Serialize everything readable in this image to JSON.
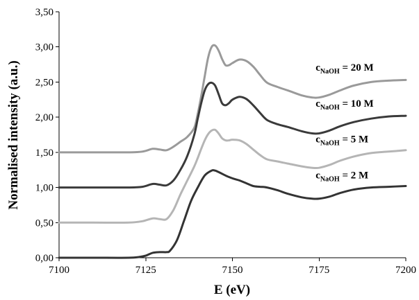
{
  "chart_data": {
    "type": "line",
    "title": "",
    "xlabel": "E (eV)",
    "ylabel": "Normalised intensity (a.u.)",
    "xlim": [
      7100,
      7200
    ],
    "ylim": [
      0,
      3.5
    ],
    "grid": false,
    "x_ticks": [
      "7100",
      "7125",
      "7150",
      "7175",
      "7200"
    ],
    "y_ticks": [
      "0,00",
      "0,50",
      "1,00",
      "1,50",
      "2,00",
      "2,50",
      "3,00",
      "3,50"
    ],
    "annotations": [
      {
        "base": "c",
        "sub": "NaOH",
        "text": " = 20 M",
        "x": 7174,
        "y": 2.66
      },
      {
        "base": "c",
        "sub": "NaOH",
        "text": " = 10 M",
        "x": 7174,
        "y": 2.15
      },
      {
        "base": "c",
        "sub": "NaOH",
        "text": " = 5 M",
        "x": 7174,
        "y": 1.64
      },
      {
        "base": "c",
        "sub": "NaOH",
        "text": " = 2 M",
        "x": 7174,
        "y": 1.13
      }
    ],
    "series": [
      {
        "color": "#9a9a9a",
        "x": [
          7100,
          7110,
          7120,
          7124,
          7127,
          7129,
          7131,
          7133,
          7135,
          7137,
          7139,
          7140,
          7141,
          7142,
          7143,
          7144,
          7145,
          7146,
          7147,
          7148,
          7149,
          7150,
          7152,
          7154,
          7156,
          7158,
          7160,
          7163,
          7166,
          7170,
          7173,
          7175,
          7178,
          7181,
          7185,
          7190,
          7195,
          7200
        ],
        "y": [
          1.5,
          1.5,
          1.5,
          1.51,
          1.55,
          1.54,
          1.53,
          1.58,
          1.65,
          1.72,
          1.85,
          2.05,
          2.3,
          2.58,
          2.85,
          3.0,
          3.02,
          2.95,
          2.83,
          2.74,
          2.74,
          2.77,
          2.82,
          2.8,
          2.72,
          2.6,
          2.49,
          2.43,
          2.38,
          2.31,
          2.28,
          2.28,
          2.32,
          2.38,
          2.45,
          2.5,
          2.52,
          2.53
        ]
      },
      {
        "color": "#3a3a3a",
        "x": [
          7100,
          7110,
          7120,
          7124,
          7127,
          7129,
          7131,
          7133,
          7135,
          7137,
          7139,
          7140,
          7141,
          7142,
          7143,
          7144,
          7145,
          7146,
          7147,
          7148,
          7149,
          7150,
          7152,
          7154,
          7156,
          7158,
          7160,
          7163,
          7166,
          7170,
          7173,
          7175,
          7178,
          7181,
          7185,
          7190,
          7195,
          7200
        ],
        "y": [
          1.0,
          1.0,
          1.0,
          1.01,
          1.05,
          1.04,
          1.03,
          1.1,
          1.25,
          1.45,
          1.75,
          1.98,
          2.2,
          2.38,
          2.47,
          2.49,
          2.45,
          2.33,
          2.2,
          2.17,
          2.2,
          2.25,
          2.29,
          2.26,
          2.17,
          2.06,
          1.96,
          1.9,
          1.86,
          1.8,
          1.77,
          1.77,
          1.81,
          1.87,
          1.93,
          1.98,
          2.01,
          2.02
        ]
      },
      {
        "color": "#b5b5b5",
        "x": [
          7100,
          7110,
          7120,
          7124,
          7127,
          7129,
          7131,
          7133,
          7135,
          7137,
          7139,
          7140,
          7141,
          7142,
          7143,
          7144,
          7145,
          7146,
          7147,
          7148,
          7149,
          7150,
          7152,
          7154,
          7156,
          7158,
          7160,
          7163,
          7166,
          7170,
          7173,
          7175,
          7178,
          7181,
          7185,
          7190,
          7195,
          7200
        ],
        "y": [
          0.5,
          0.5,
          0.5,
          0.52,
          0.56,
          0.55,
          0.55,
          0.68,
          0.9,
          1.1,
          1.3,
          1.42,
          1.55,
          1.67,
          1.76,
          1.81,
          1.82,
          1.77,
          1.7,
          1.67,
          1.67,
          1.68,
          1.67,
          1.62,
          1.54,
          1.46,
          1.4,
          1.37,
          1.34,
          1.3,
          1.28,
          1.28,
          1.32,
          1.38,
          1.44,
          1.49,
          1.51,
          1.53
        ]
      },
      {
        "color": "#333333",
        "x": [
          7100,
          7110,
          7120,
          7123,
          7125,
          7127,
          7129,
          7131,
          7132,
          7134,
          7136,
          7138,
          7140,
          7142,
          7144,
          7145,
          7146,
          7148,
          7150,
          7152,
          7154,
          7156,
          7158,
          7160,
          7163,
          7166,
          7170,
          7173,
          7175,
          7178,
          7181,
          7185,
          7190,
          7195,
          7200
        ],
        "y": [
          0.0,
          0.0,
          0.0,
          0.01,
          0.03,
          0.07,
          0.08,
          0.08,
          0.1,
          0.25,
          0.52,
          0.8,
          1.0,
          1.17,
          1.24,
          1.24,
          1.22,
          1.17,
          1.13,
          1.1,
          1.06,
          1.02,
          1.01,
          1.0,
          0.96,
          0.91,
          0.86,
          0.84,
          0.84,
          0.87,
          0.92,
          0.97,
          1.0,
          1.01,
          1.02
        ]
      }
    ]
  }
}
